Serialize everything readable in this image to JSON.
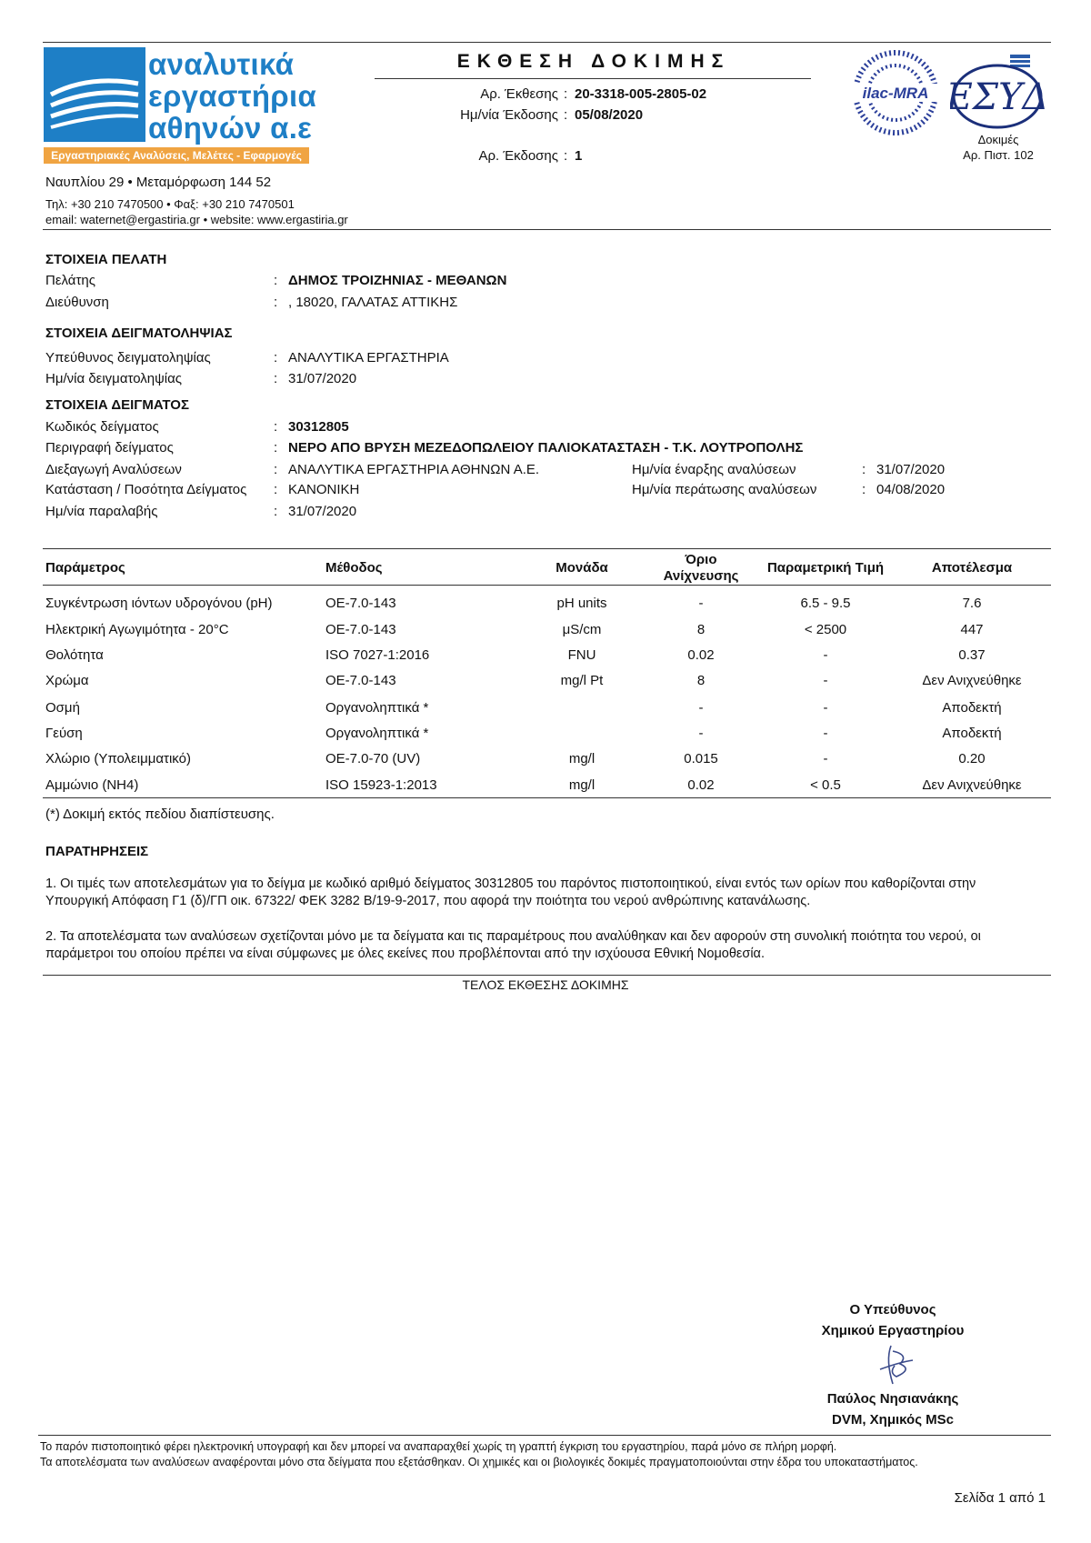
{
  "header": {
    "logo_lines": [
      "αναλυτικά",
      "εργαστήρια",
      "αθηνών α.ε"
    ],
    "tagline": "Εργαστηριακές Αναλύσεις, Μελέτες - Εφαρμογές",
    "title": "ΕΚΘΕΣΗ ΔΟΚΙΜΗΣ",
    "fields": [
      {
        "label": "Αρ. Έκθεσης",
        "value": "20-3318-005-2805-02"
      },
      {
        "label": "Ημ/νία Έκδοσης",
        "value": "05/08/2020"
      },
      {
        "label": "Αρ. Έκδοσης",
        "value": "1"
      }
    ],
    "accreditation": {
      "ilac": "ilac-MRA",
      "esyd": "ΕΣΥΔ",
      "scope": "Δοκιμές",
      "certificate": "Αρ. Πιστ. 102"
    }
  },
  "address": [
    "Ναυπλίου 29 • Μεταμόρφωση 144 52",
    "Τηλ: +30 210 7470500 • Φαξ: +30 210 7470501",
    "email: waternet@ergastiria.gr • website: www.ergastiria.gr"
  ],
  "separator": ":",
  "sections": [
    {
      "title": "ΣΤΟΙΧΕΙΑ ΠΕΛΑΤΗ",
      "fields": [
        {
          "label": "Πελάτης",
          "value": "ΔΗΜΟΣ ΤΡΟΙΖΗΝΙΑΣ - ΜΕΘΑΝΩΝ"
        },
        {
          "label": "Διεύθυνση",
          "value": ", 18020, ΓΑΛΑΤΑΣ ΑΤΤΙΚΗΣ"
        }
      ]
    },
    {
      "title": "ΣΤΟΙΧΕΙΑ ΔΕΙΓΜΑΤΟΛΗΨΙΑΣ",
      "fields": [
        {
          "label": "Υπεύθυνος δειγματοληψίας",
          "value": "ΑΝΑΛΥΤΙΚΑ ΕΡΓΑΣΤΗΡΙΑ"
        },
        {
          "label": "Ημ/νία δειγματοληψίας",
          "value": "31/07/2020"
        }
      ]
    },
    {
      "title": "ΣΤΟΙΧΕΙΑ ΔΕΙΓΜΑΤΟΣ",
      "fields": [
        {
          "label": "Κωδικός δείγματος",
          "value": "30312805"
        },
        {
          "label": "Περιγραφή δείγματος",
          "value": "ΝΕΡΟ ΑΠΟ ΒΡΥΣΗ ΜΕΖΕΔΟΠΩΛΕΙΟΥ ΠΑΛΙΟΚΑΤΑΣΤΑΣΗ - Τ.Κ. ΛΟΥΤΡΟΠΟΛΗΣ"
        },
        {
          "label": "Διεξαγωγή Αναλύσεων",
          "value": "ΑΝΑΛΥΤΙΚΑ ΕΡΓΑΣΤΗΡΙΑ ΑΘΗΝΩΝ Α.Ε."
        },
        {
          "label": "Κατάσταση / Ποσότητα Δείγματος",
          "value": "ΚΑΝΟΝΙΚΗ"
        },
        {
          "label": "Ημ/νία παραλαβής",
          "value": "31/07/2020"
        }
      ],
      "side_fields": [
        {
          "label": "Ημ/νία έναρξης αναλύσεων",
          "value": "31/07/2020"
        },
        {
          "label": "Ημ/νία περάτωσης αναλύσεων",
          "value": "04/08/2020"
        }
      ]
    }
  ],
  "table": {
    "columns": [
      "Παράμετρος",
      "Μέθοδος",
      "Μονάδα",
      "Όριο Ανίχνευσης",
      "Παραμετρική Τιμή",
      "Αποτέλεσμα"
    ],
    "rows": [
      [
        "Συγκέντρωση ιόντων υδρογόνου (pH)",
        "OE-7.0-143",
        "pH units",
        "-",
        "6.5 - 9.5",
        "7.6"
      ],
      [
        "Ηλεκτρική Αγωγιμότητα - 20°C",
        "OE-7.0-143",
        "μS/cm",
        "8",
        "< 2500",
        "447"
      ],
      [
        "Θολότητα",
        "ISO 7027-1:2016",
        "FNU",
        "0.02",
        "-",
        "0.37"
      ],
      [
        "Χρώμα",
        "OE-7.0-143",
        "mg/l Pt",
        "8",
        "-",
        "Δεν Ανιχνεύθηκε"
      ],
      [
        "Οσμή",
        "Οργανοληπτικά *",
        null,
        "-",
        "-",
        "Αποδεκτή"
      ],
      [
        "Γεύση",
        "Οργανοληπτικά *",
        null,
        "-",
        "-",
        "Αποδεκτή"
      ],
      [
        "Χλώριο (Υπολειμματικό)",
        "OE-7.0-70 (UV)",
        "mg/l",
        "0.015",
        "-",
        "0.20"
      ],
      [
        "Αμμώνιο (NH4)",
        "ISO 15923-1:2013",
        "mg/l",
        "0.02",
        "< 0.5",
        "Δεν Ανιχνεύθηκε"
      ]
    ]
  },
  "footnote": "(*) Δοκιμή εκτός πεδίου διαπίστευσης.",
  "remarks": {
    "title": "ΠΑΡΑΤΗΡΗΣΕΙΣ",
    "items": [
      "1. Οι τιμές των αποτελεσμάτων για το δείγμα με κωδικό αριθμό δείγματος 30312805 του παρόντος πιστοποιητικού, είναι εντός των ορίων που καθορίζονται στην Υπουργική Απόφαση Γ1 (δ)/ΓΠ οικ. 67322/ ΦΕΚ 3282 Β/19-9-2017, που αφορά την ποιότητα του νερού ανθρώπινης κατανάλωσης.",
      "2. Τα αποτελέσματα των αναλύσεων σχετίζονται μόνο με τα δείγματα και τις παραμέτρους που αναλύθηκαν και δεν αφορούν στη συνολική ποιότητα του νερού, οι παράμετροι του οποίου πρέπει να είναι σύμφωνες με όλες εκείνες που προβλέπονται από την ισχύουσα Εθνική Νομοθεσία."
    ]
  },
  "end": "ΤΕΛΟΣ ΕΚΘΕΣΗΣ ΔΟΚΙΜΗΣ",
  "signature": {
    "role": [
      "Ο Υπεύθυνος",
      "Χημικού Εργαστηρίου"
    ],
    "name": [
      "Παύλος Νησιανάκης",
      "DVM, Χημικός MSc"
    ]
  },
  "footer": [
    "Το παρόν πιστοποιητικό φέρει ηλεκτρονική υπογραφή και δεν μπορεί να αναπαραχθεί χωρίς τη γραπτή έγκριση του εργαστηρίου, παρά μόνο σε πλήρη μορφή.",
    "Τα αποτελέσματα των αναλύσεων αναφέρονται μόνο στα δείγματα που εξετάσθηκαν. Οι χημικές και οι βιολογικές δοκιμές πραγματοποιούνται στην έδρα του υποκαταστήματος."
  ],
  "page": "Σελίδα 1 από 1"
}
